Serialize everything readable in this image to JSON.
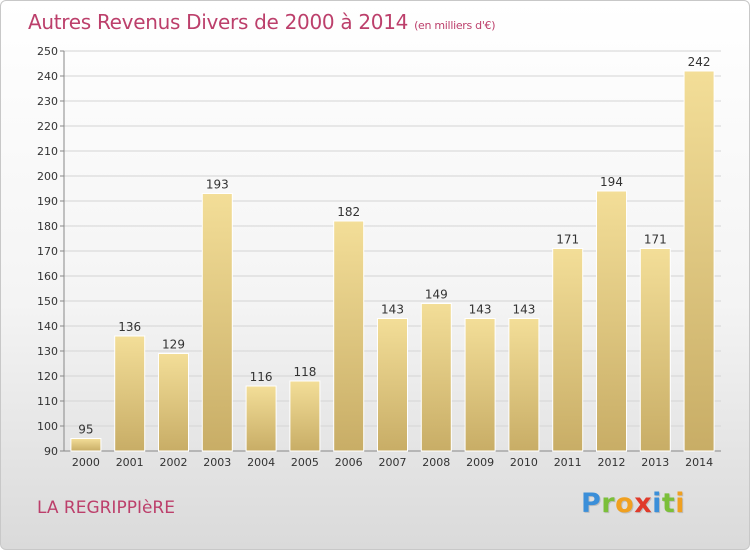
{
  "title": "Autres Revenus Divers de 2000 à 2014",
  "unit_note": "(en milliers d'€)",
  "commune": "LA REGRIPPIèRE",
  "logo": {
    "letters": [
      {
        "ch": "P",
        "color": "#3b8fd9"
      },
      {
        "ch": "r",
        "color": "#7bbf3a"
      },
      {
        "ch": "o",
        "color": "#f0a020"
      },
      {
        "ch": "x",
        "color": "#e03a2a"
      },
      {
        "ch": "i",
        "color": "#3b8fd9"
      },
      {
        "ch": "t",
        "color": "#7bbf3a"
      },
      {
        "ch": "i",
        "color": "#f0a020"
      }
    ]
  },
  "chart_data": {
    "type": "bar",
    "categories": [
      "2000",
      "2001",
      "2002",
      "2003",
      "2004",
      "2005",
      "2006",
      "2007",
      "2008",
      "2009",
      "2010",
      "2011",
      "2012",
      "2013",
      "2014"
    ],
    "values": [
      95,
      136,
      129,
      193,
      116,
      118,
      182,
      143,
      149,
      143,
      143,
      171,
      194,
      171,
      242
    ],
    "title": "Autres Revenus Divers de 2000 à 2014",
    "xlabel": "",
    "ylabel": "",
    "ylim": [
      90,
      250
    ],
    "yticks": [
      90,
      100,
      110,
      120,
      130,
      140,
      150,
      160,
      170,
      180,
      190,
      200,
      210,
      220,
      230,
      240,
      250
    ],
    "grid": true,
    "bar_color_top": "#f3de98",
    "bar_color_bottom": "#c8ad66"
  }
}
